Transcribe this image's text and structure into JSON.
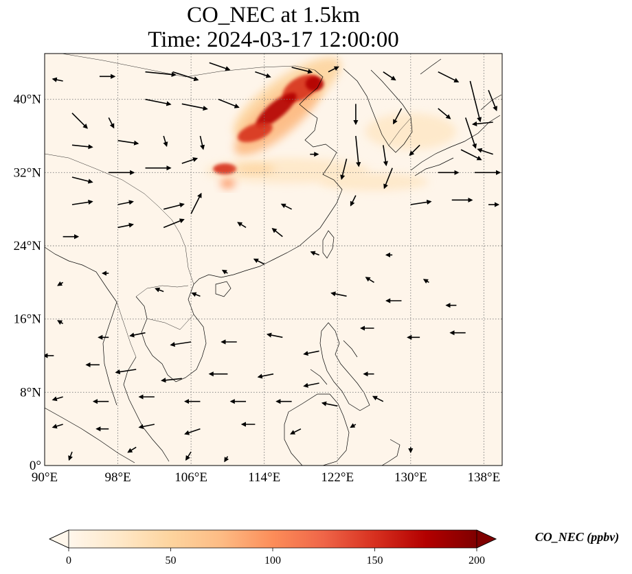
{
  "title": "CO_NEC at 1.5km",
  "time_label": "Time: 2024-03-17 12:00:00",
  "map": {
    "extent": {
      "lon_min": 90,
      "lon_max": 140,
      "lat_min": 0,
      "lat_max": 45
    },
    "lon_ticks": [
      {
        "value": 90,
        "label": "90°E"
      },
      {
        "value": 98,
        "label": "98°E"
      },
      {
        "value": 106,
        "label": "106°E"
      },
      {
        "value": 114,
        "label": "114°E"
      },
      {
        "value": 122,
        "label": "122°E"
      },
      {
        "value": 130,
        "label": "130°E"
      },
      {
        "value": 138,
        "label": "138°E"
      }
    ],
    "lat_ticks": [
      {
        "value": 0,
        "label": "0°"
      },
      {
        "value": 8,
        "label": "8°N"
      },
      {
        "value": 16,
        "label": "16°N"
      },
      {
        "value": 24,
        "label": "24°N"
      },
      {
        "value": 32,
        "label": "32°N"
      },
      {
        "value": 40,
        "label": "40°N"
      }
    ],
    "gridlines": true
  },
  "colorbar": {
    "label": "CO_NEC (ppbv)",
    "min": 0,
    "max": 200,
    "ticks": [
      0,
      50,
      100,
      150,
      200
    ],
    "colormap": "OrRd",
    "extend": "both",
    "colors": [
      "#fff7ec",
      "#fee8c8",
      "#fdd49e",
      "#fdbb84",
      "#fc8d59",
      "#ef6548",
      "#d7301f",
      "#b30000",
      "#7f0000"
    ]
  },
  "concentration_plumes": [
    {
      "lon": 116.5,
      "lat": 40.2,
      "rlon": 7.0,
      "rlat": 2.2,
      "rot": -35,
      "value": 60
    },
    {
      "lon": 115.5,
      "lat": 38.0,
      "rlon": 6.0,
      "rlat": 2.0,
      "rot": -40,
      "value": 75
    },
    {
      "lon": 118.0,
      "lat": 41.2,
      "rlon": 2.2,
      "rlat": 1.2,
      "rot": -30,
      "value": 150
    },
    {
      "lon": 115.3,
      "lat": 38.8,
      "rlon": 2.8,
      "rlat": 0.9,
      "rot": -40,
      "value": 165
    },
    {
      "lon": 113.0,
      "lat": 36.4,
      "rlon": 2.0,
      "rlat": 0.9,
      "rot": -20,
      "value": 160
    },
    {
      "lon": 119.5,
      "lat": 41.7,
      "rlon": 1.0,
      "rlat": 0.8,
      "rot": 0,
      "value": 170
    },
    {
      "lon": 116.5,
      "lat": 32.2,
      "rlon": 9.0,
      "rlat": 1.4,
      "rot": 0,
      "value": 35
    },
    {
      "lon": 109.7,
      "lat": 32.4,
      "rlon": 1.3,
      "rlat": 0.6,
      "rot": 0,
      "value": 140
    },
    {
      "lon": 113.0,
      "lat": 32.4,
      "rlon": 2.2,
      "rlat": 0.5,
      "rot": 0,
      "value": 60
    },
    {
      "lon": 110.0,
      "lat": 30.8,
      "rlon": 0.8,
      "rlat": 0.5,
      "rot": 0,
      "value": 90
    },
    {
      "lon": 130.0,
      "lat": 36.5,
      "rlon": 5.0,
      "rlat": 2.0,
      "rot": 0,
      "value": 18
    },
    {
      "lon": 126.0,
      "lat": 31.0,
      "rlon": 6.0,
      "rlat": 1.0,
      "rot": 0,
      "value": 15
    }
  ],
  "wind_vectors": [
    {
      "lon": 92,
      "lat": 42,
      "u": -1,
      "v": 0.2
    },
    {
      "lon": 96,
      "lat": 42.5,
      "u": 1.5,
      "v": 0
    },
    {
      "lon": 101,
      "lat": 43,
      "u": 3,
      "v": -0.3
    },
    {
      "lon": 104,
      "lat": 43,
      "u": 2.5,
      "v": -0.8
    },
    {
      "lon": 108,
      "lat": 44,
      "u": 2,
      "v": -0.7
    },
    {
      "lon": 113,
      "lat": 43,
      "u": 1.5,
      "v": -0.5
    },
    {
      "lon": 117,
      "lat": 43.5,
      "u": 2,
      "v": -0.5
    },
    {
      "lon": 121,
      "lat": 43,
      "u": 1,
      "v": 0.5
    },
    {
      "lon": 127,
      "lat": 43,
      "u": 1.2,
      "v": -0.8
    },
    {
      "lon": 133,
      "lat": 43,
      "u": 2,
      "v": -1
    },
    {
      "lon": 136.5,
      "lat": 42,
      "u": 1,
      "v": -4
    },
    {
      "lon": 138.5,
      "lat": 41,
      "u": 0.8,
      "v": -2
    },
    {
      "lon": 93,
      "lat": 38.5,
      "u": 1.5,
      "v": -1.5
    },
    {
      "lon": 97,
      "lat": 38,
      "u": 0.5,
      "v": -1
    },
    {
      "lon": 101,
      "lat": 40,
      "u": 2.5,
      "v": -0.5
    },
    {
      "lon": 105,
      "lat": 39.5,
      "u": 2.5,
      "v": -0.5
    },
    {
      "lon": 109,
      "lat": 40,
      "u": 2,
      "v": -0.8
    },
    {
      "lon": 124,
      "lat": 39.5,
      "u": 0,
      "v": -2
    },
    {
      "lon": 129,
      "lat": 39,
      "u": -0.8,
      "v": -1.5
    },
    {
      "lon": 133,
      "lat": 39,
      "u": 1.2,
      "v": -1
    },
    {
      "lon": 136,
      "lat": 38,
      "u": 1,
      "v": -3
    },
    {
      "lon": 139,
      "lat": 37.5,
      "u": -2,
      "v": -0.2
    },
    {
      "lon": 93,
      "lat": 35,
      "u": 2,
      "v": -0.2
    },
    {
      "lon": 98,
      "lat": 35.5,
      "u": 2,
      "v": -0.3
    },
    {
      "lon": 103,
      "lat": 36,
      "u": 0.3,
      "v": -1
    },
    {
      "lon": 107,
      "lat": 36,
      "u": 0.3,
      "v": -1.3
    },
    {
      "lon": 124,
      "lat": 36,
      "u": 0.3,
      "v": -3
    },
    {
      "lon": 127,
      "lat": 35,
      "u": 0.3,
      "v": -2
    },
    {
      "lon": 131,
      "lat": 35,
      "u": -1,
      "v": -1
    },
    {
      "lon": 135.5,
      "lat": 34.5,
      "u": 2,
      "v": -1
    },
    {
      "lon": 139,
      "lat": 34,
      "u": -1.5,
      "v": 0.5
    },
    {
      "lon": 93,
      "lat": 31.5,
      "u": 2,
      "v": -0.5
    },
    {
      "lon": 97,
      "lat": 32,
      "u": 2.5,
      "v": 0
    },
    {
      "lon": 101,
      "lat": 32.5,
      "u": 2.5,
      "v": 0
    },
    {
      "lon": 105,
      "lat": 33,
      "u": 1.5,
      "v": 0.5
    },
    {
      "lon": 119,
      "lat": 34,
      "u": 0.8,
      "v": 0
    },
    {
      "lon": 123,
      "lat": 33.5,
      "u": -0.5,
      "v": -2
    },
    {
      "lon": 128,
      "lat": 32.5,
      "u": -0.8,
      "v": -2
    },
    {
      "lon": 133,
      "lat": 32,
      "u": 2,
      "v": 0
    },
    {
      "lon": 137,
      "lat": 32,
      "u": 2.5,
      "v": 0
    },
    {
      "lon": 93,
      "lat": 28.5,
      "u": 2,
      "v": 0.3
    },
    {
      "lon": 98,
      "lat": 28.5,
      "u": 1.5,
      "v": 0.3
    },
    {
      "lon": 103,
      "lat": 28,
      "u": 2,
      "v": 0.5
    },
    {
      "lon": 106,
      "lat": 27.5,
      "u": 1,
      "v": 2
    },
    {
      "lon": 124,
      "lat": 29.5,
      "u": -0.5,
      "v": -1
    },
    {
      "lon": 130,
      "lat": 28.5,
      "u": 2,
      "v": 0.3
    },
    {
      "lon": 134.5,
      "lat": 29,
      "u": 2,
      "v": 0
    },
    {
      "lon": 138.5,
      "lat": 28.5,
      "u": 1,
      "v": 0
    },
    {
      "lon": 92,
      "lat": 25,
      "u": 1.5,
      "v": 0
    },
    {
      "lon": 98,
      "lat": 26,
      "u": 1.5,
      "v": 0.3
    },
    {
      "lon": 103,
      "lat": 26,
      "u": 2,
      "v": 0.8
    },
    {
      "lon": 112,
      "lat": 26,
      "u": -0.8,
      "v": 0.5
    },
    {
      "lon": 116,
      "lat": 25,
      "u": -1,
      "v": 0.8
    },
    {
      "lon": 117,
      "lat": 28,
      "u": -1,
      "v": 0.5
    },
    {
      "lon": 110,
      "lat": 21,
      "u": -0.5,
      "v": 0.3
    },
    {
      "lon": 114,
      "lat": 22,
      "u": -1,
      "v": 0.5
    },
    {
      "lon": 120,
      "lat": 23,
      "u": -0.8,
      "v": 0.3
    },
    {
      "lon": 126,
      "lat": 20,
      "u": -0.8,
      "v": 0.5
    },
    {
      "lon": 128,
      "lat": 23,
      "u": -0.6,
      "v": 0
    },
    {
      "lon": 132,
      "lat": 20,
      "u": -0.5,
      "v": 0.3
    },
    {
      "lon": 92,
      "lat": 20,
      "u": -0.5,
      "v": -0.3
    },
    {
      "lon": 97,
      "lat": 21,
      "u": -0.6,
      "v": 0
    },
    {
      "lon": 103,
      "lat": 19,
      "u": -0.8,
      "v": 0.3
    },
    {
      "lon": 107,
      "lat": 18.5,
      "u": -0.8,
      "v": 0.3
    },
    {
      "lon": 123,
      "lat": 18.5,
      "u": -1.5,
      "v": 0.3
    },
    {
      "lon": 129,
      "lat": 18,
      "u": -1.5,
      "v": 0
    },
    {
      "lon": 135,
      "lat": 17.5,
      "u": -1,
      "v": 0
    },
    {
      "lon": 92,
      "lat": 15.5,
      "u": -0.5,
      "v": 0.3
    },
    {
      "lon": 97,
      "lat": 14,
      "u": -1,
      "v": 0
    },
    {
      "lon": 101,
      "lat": 14.5,
      "u": -1.5,
      "v": -0.3
    },
    {
      "lon": 106,
      "lat": 13.5,
      "u": -2,
      "v": -0.3
    },
    {
      "lon": 111,
      "lat": 13.5,
      "u": -1.5,
      "v": 0
    },
    {
      "lon": 116,
      "lat": 14,
      "u": -1.5,
      "v": 0.3
    },
    {
      "lon": 120,
      "lat": 12.5,
      "u": -1.5,
      "v": -0.3
    },
    {
      "lon": 126,
      "lat": 15,
      "u": -1.3,
      "v": 0
    },
    {
      "lon": 131,
      "lat": 14,
      "u": -1.2,
      "v": 0
    },
    {
      "lon": 136,
      "lat": 14.5,
      "u": -1.5,
      "v": 0
    },
    {
      "lon": 91,
      "lat": 12,
      "u": -1,
      "v": 0
    },
    {
      "lon": 96,
      "lat": 11,
      "u": -1.3,
      "v": 0
    },
    {
      "lon": 100,
      "lat": 10.5,
      "u": -2,
      "v": -0.3
    },
    {
      "lon": 105,
      "lat": 9.5,
      "u": -2,
      "v": -0.2
    },
    {
      "lon": 110,
      "lat": 10,
      "u": -1.8,
      "v": 0
    },
    {
      "lon": 115,
      "lat": 10,
      "u": -1.5,
      "v": -0.3
    },
    {
      "lon": 120,
      "lat": 9,
      "u": -1.5,
      "v": -0.3
    },
    {
      "lon": 126,
      "lat": 10,
      "u": -1,
      "v": 0
    },
    {
      "lon": 92,
      "lat": 7.5,
      "u": -1,
      "v": -0.3
    },
    {
      "lon": 97,
      "lat": 7,
      "u": -1.5,
      "v": 0
    },
    {
      "lon": 102,
      "lat": 7.5,
      "u": -1.5,
      "v": 0
    },
    {
      "lon": 107,
      "lat": 7,
      "u": -1.5,
      "v": 0
    },
    {
      "lon": 112,
      "lat": 7,
      "u": -1.5,
      "v": 0
    },
    {
      "lon": 117,
      "lat": 7,
      "u": -1.5,
      "v": 0
    },
    {
      "lon": 122,
      "lat": 6.5,
      "u": -1.5,
      "v": 0.3
    },
    {
      "lon": 127,
      "lat": 7,
      "u": -1,
      "v": 0.5
    },
    {
      "lon": 92,
      "lat": 4.5,
      "u": -1,
      "v": -0.3
    },
    {
      "lon": 97,
      "lat": 4,
      "u": -1.2,
      "v": 0
    },
    {
      "lon": 102,
      "lat": 4.5,
      "u": -1.5,
      "v": -0.3
    },
    {
      "lon": 107,
      "lat": 4,
      "u": -1.5,
      "v": -0.5
    },
    {
      "lon": 113,
      "lat": 4.5,
      "u": -1.3,
      "v": 0
    },
    {
      "lon": 118,
      "lat": 4,
      "u": -1,
      "v": -0.5
    },
    {
      "lon": 124,
      "lat": 4.5,
      "u": -0.5,
      "v": -0.3
    },
    {
      "lon": 130,
      "lat": 2,
      "u": 0,
      "v": -0.5
    },
    {
      "lon": 100,
      "lat": 2,
      "u": -0.8,
      "v": -0.5
    },
    {
      "lon": 106,
      "lat": 1.5,
      "u": -0.5,
      "v": -0.8
    },
    {
      "lon": 110,
      "lat": 1,
      "u": -0.3,
      "v": -0.5
    },
    {
      "lon": 93,
      "lat": 1.5,
      "u": -0.3,
      "v": -0.8
    }
  ]
}
